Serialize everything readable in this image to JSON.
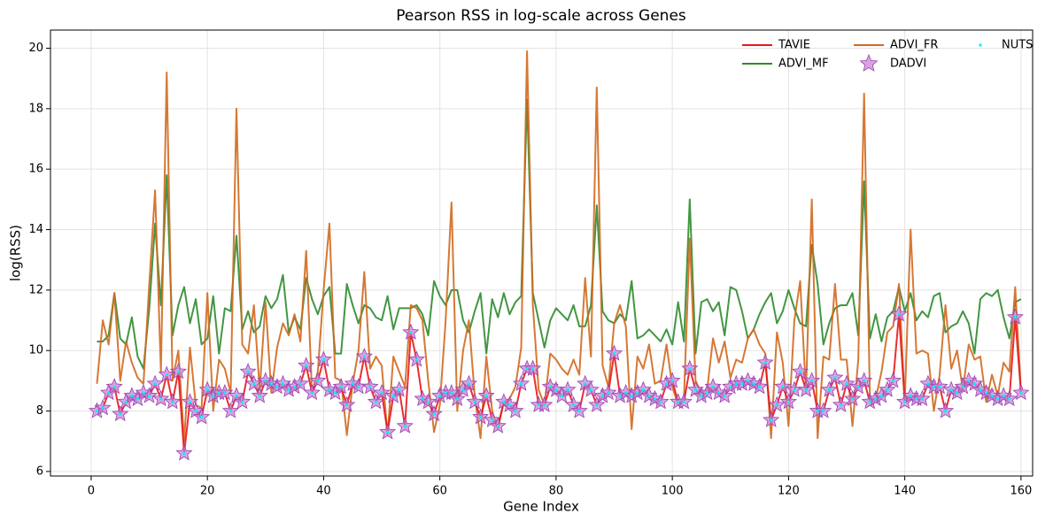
{
  "chart_data": {
    "type": "line",
    "title": "Pearson RSS in log-scale across Genes",
    "x_label": "Gene Index",
    "y_label": "log(RSS)",
    "x": [
      1,
      2,
      3,
      4,
      5,
      6,
      7,
      8,
      9,
      10,
      11,
      12,
      13,
      14,
      15,
      16,
      17,
      18,
      19,
      20,
      21,
      22,
      23,
      24,
      25,
      26,
      27,
      28,
      29,
      30,
      31,
      32,
      33,
      34,
      35,
      36,
      37,
      38,
      39,
      40,
      41,
      42,
      43,
      44,
      45,
      46,
      47,
      48,
      49,
      50,
      51,
      52,
      53,
      54,
      55,
      56,
      57,
      58,
      59,
      60,
      61,
      62,
      63,
      64,
      65,
      66,
      67,
      68,
      69,
      70,
      71,
      72,
      73,
      74,
      75,
      76,
      77,
      78,
      79,
      80,
      81,
      82,
      83,
      84,
      85,
      86,
      87,
      88,
      89,
      90,
      91,
      92,
      93,
      94,
      95,
      96,
      97,
      98,
      99,
      100,
      101,
      102,
      103,
      104,
      105,
      106,
      107,
      108,
      109,
      110,
      111,
      112,
      113,
      114,
      115,
      116,
      117,
      118,
      119,
      120,
      121,
      122,
      123,
      124,
      125,
      126,
      127,
      128,
      129,
      130,
      131,
      132,
      133,
      134,
      135,
      136,
      137,
      138,
      139,
      140,
      141,
      142,
      143,
      144,
      145,
      146,
      147,
      148,
      149,
      150,
      151,
      152,
      153,
      154,
      155,
      156,
      157,
      158,
      159,
      160
    ],
    "series": [
      {
        "name": "TAVIE",
        "color": "#e8171d",
        "marker": "line",
        "values": [
          8.0,
          8.1,
          8.6,
          8.8,
          7.9,
          8.3,
          8.5,
          8.4,
          8.6,
          8.5,
          8.9,
          8.4,
          9.2,
          8.3,
          9.3,
          6.6,
          8.3,
          8.0,
          7.8,
          8.7,
          8.5,
          8.6,
          8.6,
          8.0,
          8.5,
          8.3,
          9.3,
          8.9,
          8.5,
          9.0,
          8.9,
          8.8,
          8.9,
          8.7,
          8.8,
          8.9,
          9.5,
          8.6,
          9.0,
          9.7,
          8.7,
          8.6,
          8.8,
          8.2,
          8.9,
          8.8,
          9.8,
          8.8,
          8.3,
          8.6,
          7.3,
          8.5,
          8.7,
          7.5,
          10.6,
          9.7,
          8.4,
          8.3,
          7.9,
          8.5,
          8.6,
          8.6,
          8.4,
          8.7,
          8.9,
          8.3,
          7.8,
          8.5,
          7.7,
          7.5,
          8.3,
          8.2,
          8.0,
          8.9,
          9.4,
          9.4,
          8.2,
          8.2,
          8.8,
          8.7,
          8.5,
          8.7,
          8.2,
          8.0,
          8.9,
          8.7,
          8.2,
          8.5,
          8.6,
          9.9,
          8.5,
          8.6,
          8.5,
          8.6,
          8.7,
          8.5,
          8.4,
          8.3,
          8.9,
          9.0,
          8.3,
          8.3,
          9.4,
          8.7,
          8.5,
          8.6,
          8.8,
          8.6,
          8.5,
          8.8,
          8.9,
          8.9,
          9.0,
          8.9,
          8.8,
          9.6,
          7.7,
          8.2,
          8.8,
          8.3,
          8.7,
          9.3,
          8.7,
          9.0,
          8.0,
          8.0,
          8.7,
          9.1,
          8.2,
          8.9,
          8.4,
          8.8,
          9.0,
          8.3,
          8.4,
          8.5,
          8.7,
          9.0,
          11.2,
          8.3,
          8.5,
          8.4,
          8.4,
          8.9,
          8.8,
          8.8,
          8.0,
          8.7,
          8.6,
          8.8,
          9.0,
          8.9,
          8.7,
          8.6,
          8.5,
          8.4,
          8.5,
          8.4,
          11.1,
          8.6
        ]
      },
      {
        "name": "ADVI_MF",
        "color": "#2e8b2e",
        "marker": "line",
        "values": [
          10.3,
          10.3,
          10.5,
          11.9,
          10.4,
          10.2,
          11.1,
          9.8,
          9.4,
          11.4,
          14.2,
          11.5,
          15.8,
          10.5,
          11.5,
          12.1,
          10.9,
          11.7,
          10.2,
          10.4,
          11.8,
          9.9,
          11.4,
          11.3,
          13.8,
          10.7,
          11.3,
          10.6,
          10.8,
          11.8,
          11.4,
          11.7,
          12.5,
          10.6,
          11.1,
          10.7,
          12.4,
          11.7,
          11.2,
          11.8,
          12.1,
          9.9,
          9.9,
          12.2,
          11.5,
          10.9,
          11.5,
          11.4,
          11.1,
          11.0,
          11.8,
          10.7,
          11.4,
          11.4,
          11.4,
          11.5,
          11.2,
          10.5,
          12.3,
          11.8,
          11.5,
          12.0,
          12.0,
          11.0,
          10.6,
          11.3,
          11.9,
          9.9,
          11.7,
          11.1,
          11.9,
          11.2,
          11.6,
          11.8,
          18.3,
          11.9,
          11.0,
          10.1,
          11.0,
          11.4,
          11.2,
          11.0,
          11.5,
          10.8,
          10.8,
          11.5,
          14.8,
          11.3,
          11.0,
          10.9,
          11.2,
          11.0,
          12.3,
          10.4,
          10.5,
          10.7,
          10.5,
          10.3,
          10.7,
          10.2,
          11.6,
          10.3,
          15.0,
          9.9,
          11.6,
          11.7,
          11.3,
          11.6,
          10.5,
          12.1,
          12.0,
          11.3,
          10.4,
          10.7,
          11.2,
          11.6,
          11.9,
          10.9,
          11.3,
          12.0,
          11.4,
          10.9,
          10.8,
          13.5,
          12.2,
          10.2,
          10.9,
          11.4,
          11.5,
          11.5,
          11.9,
          10.5,
          15.6,
          10.4,
          11.2,
          10.3,
          11.1,
          11.3,
          12.1,
          11.3,
          11.9,
          11.0,
          11.3,
          11.1,
          11.8,
          11.9,
          10.6,
          10.8,
          10.9,
          11.3,
          10.9,
          9.9,
          11.7,
          11.9,
          11.8,
          12.0,
          11.1,
          10.4,
          11.6,
          11.7
        ]
      },
      {
        "name": "ADVI_FR",
        "color": "#d2691e",
        "marker": "line",
        "values": [
          8.9,
          11.0,
          10.2,
          11.9,
          9.0,
          10.3,
          9.6,
          9.1,
          8.9,
          12.2,
          15.3,
          9.3,
          19.2,
          9.0,
          10.0,
          7.0,
          10.1,
          8.2,
          8.1,
          11.9,
          8.0,
          9.7,
          9.4,
          8.6,
          18.0,
          10.2,
          9.9,
          11.5,
          8.7,
          11.6,
          8.6,
          10.1,
          10.9,
          10.5,
          11.2,
          10.3,
          13.3,
          8.6,
          9.3,
          12.0,
          14.2,
          9.1,
          9.0,
          7.2,
          8.9,
          10.0,
          12.6,
          9.4,
          9.8,
          9.5,
          7.2,
          9.8,
          9.3,
          8.8,
          11.5,
          11.4,
          11.0,
          9.0,
          7.3,
          8.2,
          11.0,
          14.9,
          8.0,
          10.0,
          11.0,
          8.5,
          7.1,
          9.8,
          8.0,
          7.4,
          8.3,
          8.4,
          8.8,
          10.1,
          19.9,
          11.5,
          8.7,
          8.2,
          9.9,
          9.7,
          9.4,
          9.2,
          9.7,
          9.2,
          12.4,
          9.8,
          18.7,
          9.5,
          8.8,
          10.9,
          11.5,
          10.8,
          7.4,
          9.8,
          9.4,
          10.2,
          8.9,
          9.0,
          10.2,
          8.8,
          8.2,
          8.4,
          13.7,
          9.0,
          8.6,
          8.7,
          10.4,
          9.6,
          10.3,
          9.1,
          9.7,
          9.6,
          10.4,
          10.7,
          10.2,
          9.9,
          7.1,
          10.6,
          9.6,
          7.5,
          11.0,
          12.3,
          8.6,
          15.0,
          7.1,
          9.8,
          9.7,
          12.2,
          9.7,
          9.7,
          7.5,
          9.7,
          18.5,
          8.4,
          8.4,
          9.3,
          10.6,
          10.8,
          12.2,
          8.3,
          14.0,
          9.9,
          10.0,
          9.9,
          8.0,
          9.2,
          11.5,
          9.4,
          10.0,
          8.7,
          10.2,
          9.7,
          9.8,
          8.3,
          9.2,
          8.5,
          9.6,
          9.3,
          12.1,
          8.6
        ]
      },
      {
        "name": "DADVI",
        "color": "#c77dd3",
        "marker": "star",
        "values": [
          8.0,
          8.1,
          8.6,
          8.8,
          7.9,
          8.3,
          8.5,
          8.4,
          8.6,
          8.5,
          8.9,
          8.4,
          9.2,
          8.3,
          9.3,
          6.6,
          8.3,
          8.0,
          7.8,
          8.7,
          8.5,
          8.6,
          8.6,
          8.0,
          8.5,
          8.3,
          9.3,
          8.9,
          8.5,
          9.0,
          8.9,
          8.8,
          8.9,
          8.7,
          8.8,
          8.9,
          9.5,
          8.6,
          9.0,
          9.7,
          8.7,
          8.6,
          8.8,
          8.2,
          8.9,
          8.8,
          9.8,
          8.8,
          8.3,
          8.6,
          7.3,
          8.5,
          8.7,
          7.5,
          10.6,
          9.7,
          8.4,
          8.3,
          7.9,
          8.5,
          8.6,
          8.6,
          8.4,
          8.7,
          8.9,
          8.3,
          7.8,
          8.5,
          7.7,
          7.5,
          8.3,
          8.2,
          8.0,
          8.9,
          9.4,
          9.4,
          8.2,
          8.2,
          8.8,
          8.7,
          8.5,
          8.7,
          8.2,
          8.0,
          8.9,
          8.7,
          8.2,
          8.5,
          8.6,
          9.9,
          8.5,
          8.6,
          8.5,
          8.6,
          8.7,
          8.5,
          8.4,
          8.3,
          8.9,
          9.0,
          8.3,
          8.3,
          9.4,
          8.7,
          8.5,
          8.6,
          8.8,
          8.6,
          8.5,
          8.8,
          8.9,
          8.9,
          9.0,
          8.9,
          8.8,
          9.6,
          7.7,
          8.2,
          8.8,
          8.3,
          8.7,
          9.3,
          8.7,
          9.0,
          8.0,
          8.0,
          8.7,
          9.1,
          8.2,
          8.9,
          8.4,
          8.8,
          9.0,
          8.3,
          8.4,
          8.5,
          8.7,
          9.0,
          11.2,
          8.3,
          8.5,
          8.4,
          8.4,
          8.9,
          8.8,
          8.8,
          8.0,
          8.7,
          8.6,
          8.8,
          9.0,
          8.9,
          8.7,
          8.6,
          8.5,
          8.4,
          8.5,
          8.4,
          11.1,
          8.6
        ]
      },
      {
        "name": "NUTS",
        "color": "#00f0ff",
        "marker": "point",
        "values": [
          8.0,
          8.1,
          8.6,
          8.8,
          7.9,
          8.3,
          8.5,
          8.4,
          8.6,
          8.5,
          8.9,
          8.4,
          9.2,
          8.3,
          9.3,
          6.6,
          8.3,
          8.0,
          7.8,
          8.7,
          8.5,
          8.6,
          8.6,
          8.0,
          8.5,
          8.3,
          9.3,
          8.9,
          8.5,
          9.0,
          8.9,
          8.8,
          8.9,
          8.7,
          8.8,
          8.9,
          9.5,
          8.6,
          9.0,
          9.7,
          8.7,
          8.6,
          8.8,
          8.2,
          8.9,
          8.8,
          9.8,
          8.8,
          8.3,
          8.6,
          7.3,
          8.5,
          8.7,
          7.5,
          10.6,
          9.7,
          8.4,
          8.3,
          7.9,
          8.5,
          8.6,
          8.6,
          8.4,
          8.7,
          8.9,
          8.3,
          7.8,
          8.5,
          7.7,
          7.5,
          8.3,
          8.2,
          8.0,
          8.9,
          9.4,
          9.4,
          8.2,
          8.2,
          8.8,
          8.7,
          8.5,
          8.7,
          8.2,
          8.0,
          8.9,
          8.7,
          8.2,
          8.5,
          8.6,
          9.9,
          8.5,
          8.6,
          8.5,
          8.6,
          8.7,
          8.5,
          8.4,
          8.3,
          8.9,
          9.0,
          8.3,
          8.3,
          9.4,
          8.7,
          8.5,
          8.6,
          8.8,
          8.6,
          8.5,
          8.8,
          8.9,
          8.9,
          9.0,
          8.9,
          8.8,
          9.6,
          7.7,
          8.2,
          8.8,
          8.3,
          8.7,
          9.3,
          8.7,
          9.0,
          8.0,
          8.0,
          8.7,
          9.1,
          8.2,
          8.9,
          8.4,
          8.8,
          9.0,
          8.3,
          8.4,
          8.5,
          8.7,
          9.0,
          11.2,
          8.3,
          8.5,
          8.4,
          8.4,
          8.9,
          8.8,
          8.8,
          8.0,
          8.7,
          8.6,
          8.8,
          9.0,
          8.9,
          8.7,
          8.6,
          8.5,
          8.4,
          8.5,
          8.4,
          11.1,
          8.6
        ]
      }
    ],
    "xlim": [
      -7,
      162
    ],
    "xticks": [
      0,
      20,
      40,
      60,
      80,
      100,
      120,
      140,
      160
    ],
    "ylim": [
      5.85,
      20.6
    ],
    "yticks": [
      6,
      8,
      10,
      12,
      14,
      16,
      18,
      20
    ],
    "grid": true,
    "legend": "upper right"
  }
}
